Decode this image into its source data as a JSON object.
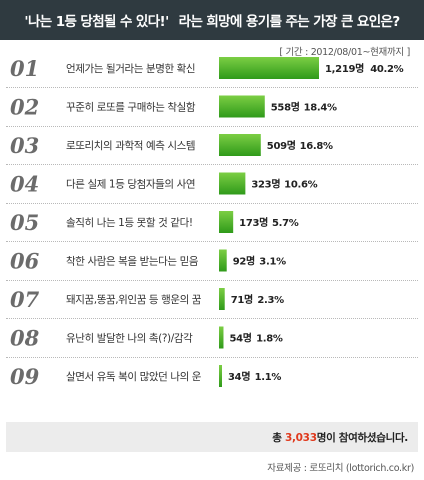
{
  "header": {
    "title_part1": "'나는 1등 당첨될 수 있다!'",
    "title_part2": "라는 희망에 용기를 주는 가장 큰 요인은?"
  },
  "period": "[ 기간 : 2012/08/01~현재까지 ]",
  "footer": {
    "total_prefix": "총 ",
    "total_number": "3,033",
    "total_suffix": "명이 참여하셨습니다.",
    "source": "자료제공 : 로또리치 (lottorich.co.kr)"
  },
  "colors": {
    "rank_number": "#6b6b6b",
    "bar_top": "#7cce44",
    "bar_bottom": "#2f9a1a",
    "header_bg": "#2f3a40",
    "total_highlight": "#e03a1e"
  },
  "chart_data": {
    "type": "bar",
    "orientation": "horizontal",
    "title": "'나는 1등 당첨될 수 있다!' 라는 희망에 용기를 주는 가장 큰 요인은?",
    "ranks": [
      "01",
      "02",
      "03",
      "04",
      "05",
      "06",
      "07",
      "08",
      "09"
    ],
    "categories": [
      "언제가는 될거라는 분명한 확신",
      "꾸준히 로또를 구매하는 착실함",
      "로또리치의 과학적 예측 시스템",
      "다른 실제 1등 당첨자들의 사연",
      "솔직히 나는 1등 못할 것 같다!",
      "착한 사람은 복을 받는다는 믿음",
      "돼지꿈,똥꿈,위인꿈 등 행운의 꿈",
      "유난히 발달한 나의 촉(?)/감각",
      "살면서 유독 복이 많았던 나의 운"
    ],
    "counts": [
      1219,
      558,
      509,
      323,
      173,
      92,
      71,
      54,
      34
    ],
    "count_labels": [
      "1,219명",
      "558명",
      "509명",
      "323명",
      "173명",
      "92명",
      "71명",
      "54명",
      "34명"
    ],
    "percent": [
      40.2,
      18.4,
      16.8,
      10.6,
      5.7,
      3.1,
      2.3,
      1.8,
      1.1
    ],
    "percent_labels": [
      "40.2%",
      "18.4%",
      "16.8%",
      "10.6%",
      "5.7%",
      "3.1%",
      "2.3%",
      "1.8%",
      "1.1%"
    ]
  }
}
